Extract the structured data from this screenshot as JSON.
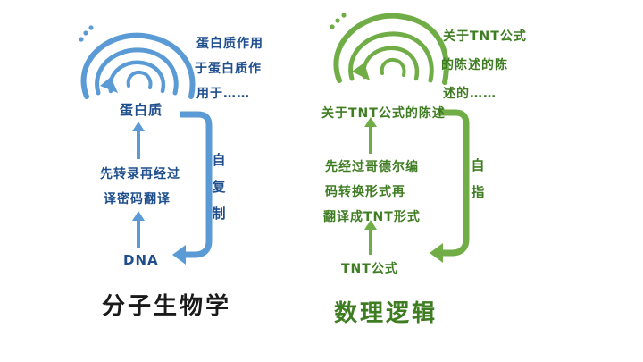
{
  "left": {
    "accent": "#5b9bd5",
    "text_color": "#1f4e8c",
    "side_text": [
      "蛋白质作用",
      "于蛋白质作",
      "用于……"
    ],
    "top_label": "蛋白质",
    "middle_text": [
      "先转录再经过",
      "译密码翻译"
    ],
    "bottom_label": "DNA",
    "loop_label": "自复制",
    "title": "分子生物学"
  },
  "right": {
    "accent": "#70ad47",
    "text_color": "#3f7d22",
    "side_text": [
      "关于TNT公式",
      "的陈述的陈",
      "述的……"
    ],
    "top_label": "关于TNT公式的陈述",
    "middle_text": [
      "先经过哥德尔编",
      "码转换形式再",
      "翻译成TNT形式"
    ],
    "bottom_label": "TNT公式",
    "loop_label": "自指",
    "title": "数理逻辑"
  }
}
